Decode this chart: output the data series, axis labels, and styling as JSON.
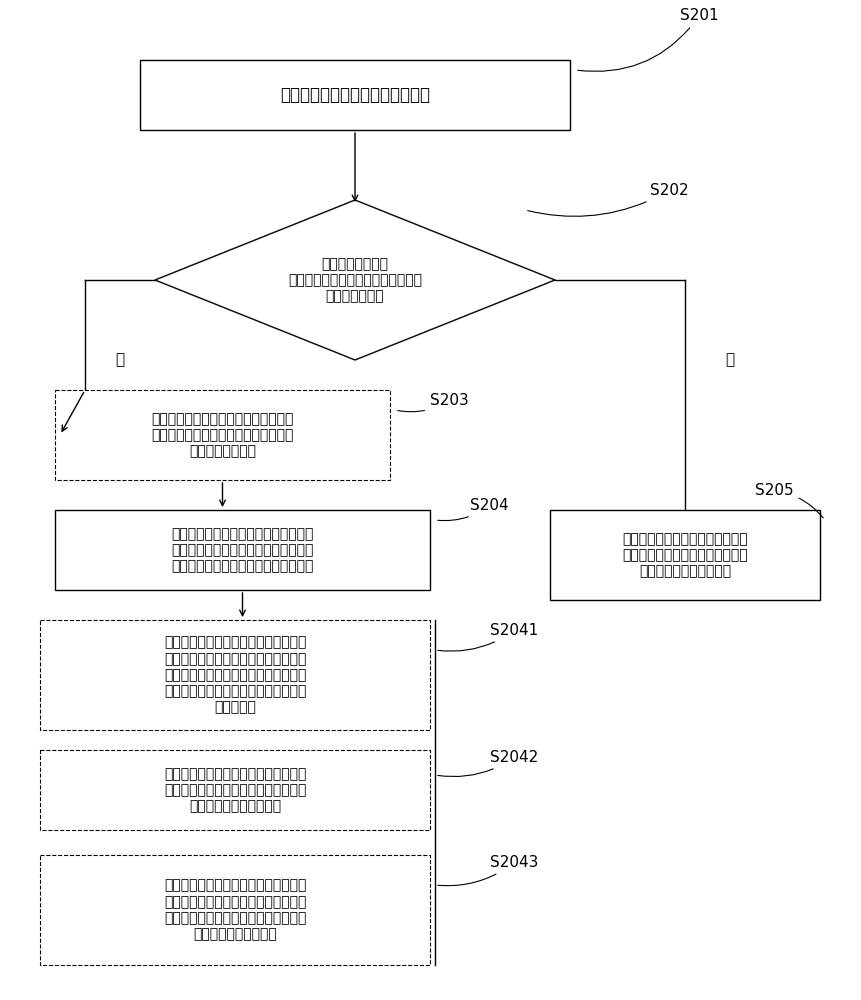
{
  "bg_color": "#ffffff",
  "line_color": "#000000",
  "box_border_color": "#000000",
  "dashed_border_color": "#555555",
  "text_color": "#000000",
  "font_size": 9,
  "label_font_size": 10,
  "s201_label": "S201",
  "s202_label": "S202",
  "s203_label": "S203",
  "s204_label": "S204",
  "s205_label": "S205",
  "s2041_label": "S2041",
  "s2042_label": "S2042",
  "s2043_label": "S2043",
  "box1_text": "检测适配器内多个发热源的温度值",
  "diamond_text": "判断所述多个发热\n源的温度值中的最高温度值是否达到\n第一预设温度值",
  "box3_text": "向移动终端发送检测终端工作状态是否\n处于待机状态以及检测电池电量是否大\n于预设电量的指令",
  "box4_text": "根据所述移动终端返回的检测结果，以\n及预设温度范围与预设充电电流的对应\n表对应调整所述适配器输出的充电电流",
  "box5_text": "根据所述适配器的预设温度范围与\n预设充电电流的对应表对应调整所\n述适配器输出的充电电流",
  "box2041_text": "当接收到所述移动终端返回的所述终端\n工作状态为待机状态，且所述电池电量\n大于预设电量时，根据预设温度范围与\n预设电流的对应表减小所述适配器输出\n的充电电流",
  "box2042_text": "当接收到所述移动终端返回的所述终端\n工作状态为非待机状态时，维持所述适\n配器当前输出的充电电流",
  "box2043_text": "当接收到所述移动终端返回的所述终端\n工作状态为待机状态，且所述电池电量\n小于或等于预设电量时，维持所述适配\n器当前输出的充电电流",
  "yes_label": "是",
  "no_label": "否"
}
